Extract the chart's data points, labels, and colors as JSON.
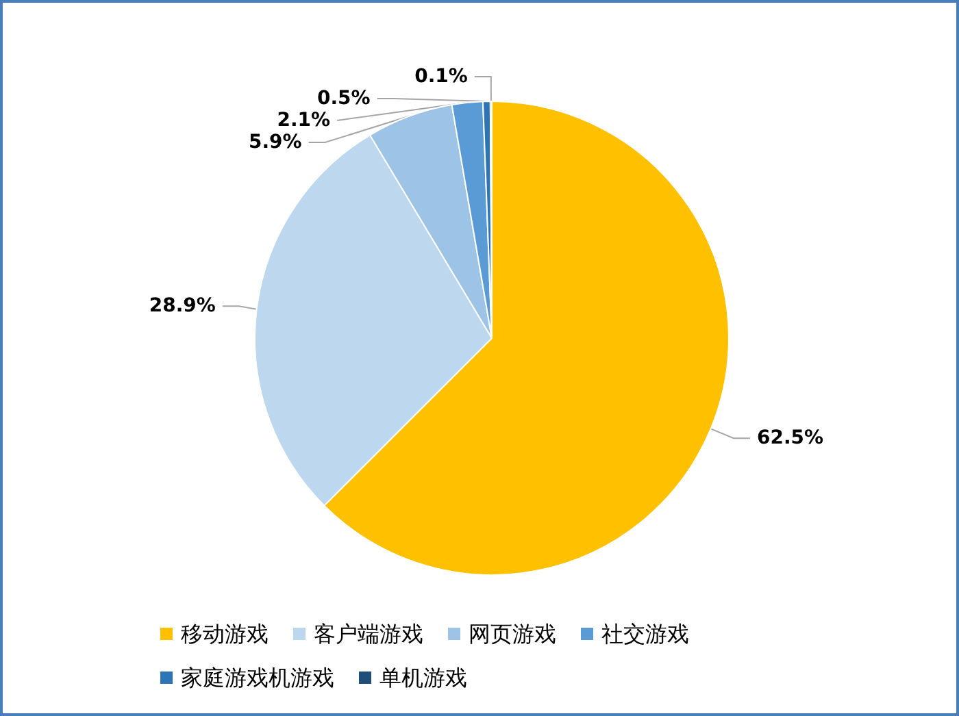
{
  "chart_data": {
    "type": "pie",
    "categories": [
      "移动游戏",
      "客户端游戏",
      "网页游戏",
      "社交游戏",
      "家庭游戏机游戏",
      "单机游戏"
    ],
    "values": [
      62.5,
      28.9,
      5.9,
      2.1,
      0.5,
      0.1
    ],
    "colors": [
      "#ffc000",
      "#bdd7ee",
      "#9dc3e6",
      "#5b9bd5",
      "#2e75b6",
      "#1f4e79"
    ],
    "value_labels": [
      "62.5%",
      "28.9%",
      "5.9%",
      "2.1%",
      "0.5%",
      "0.1%"
    ],
    "legend": "bottom"
  }
}
